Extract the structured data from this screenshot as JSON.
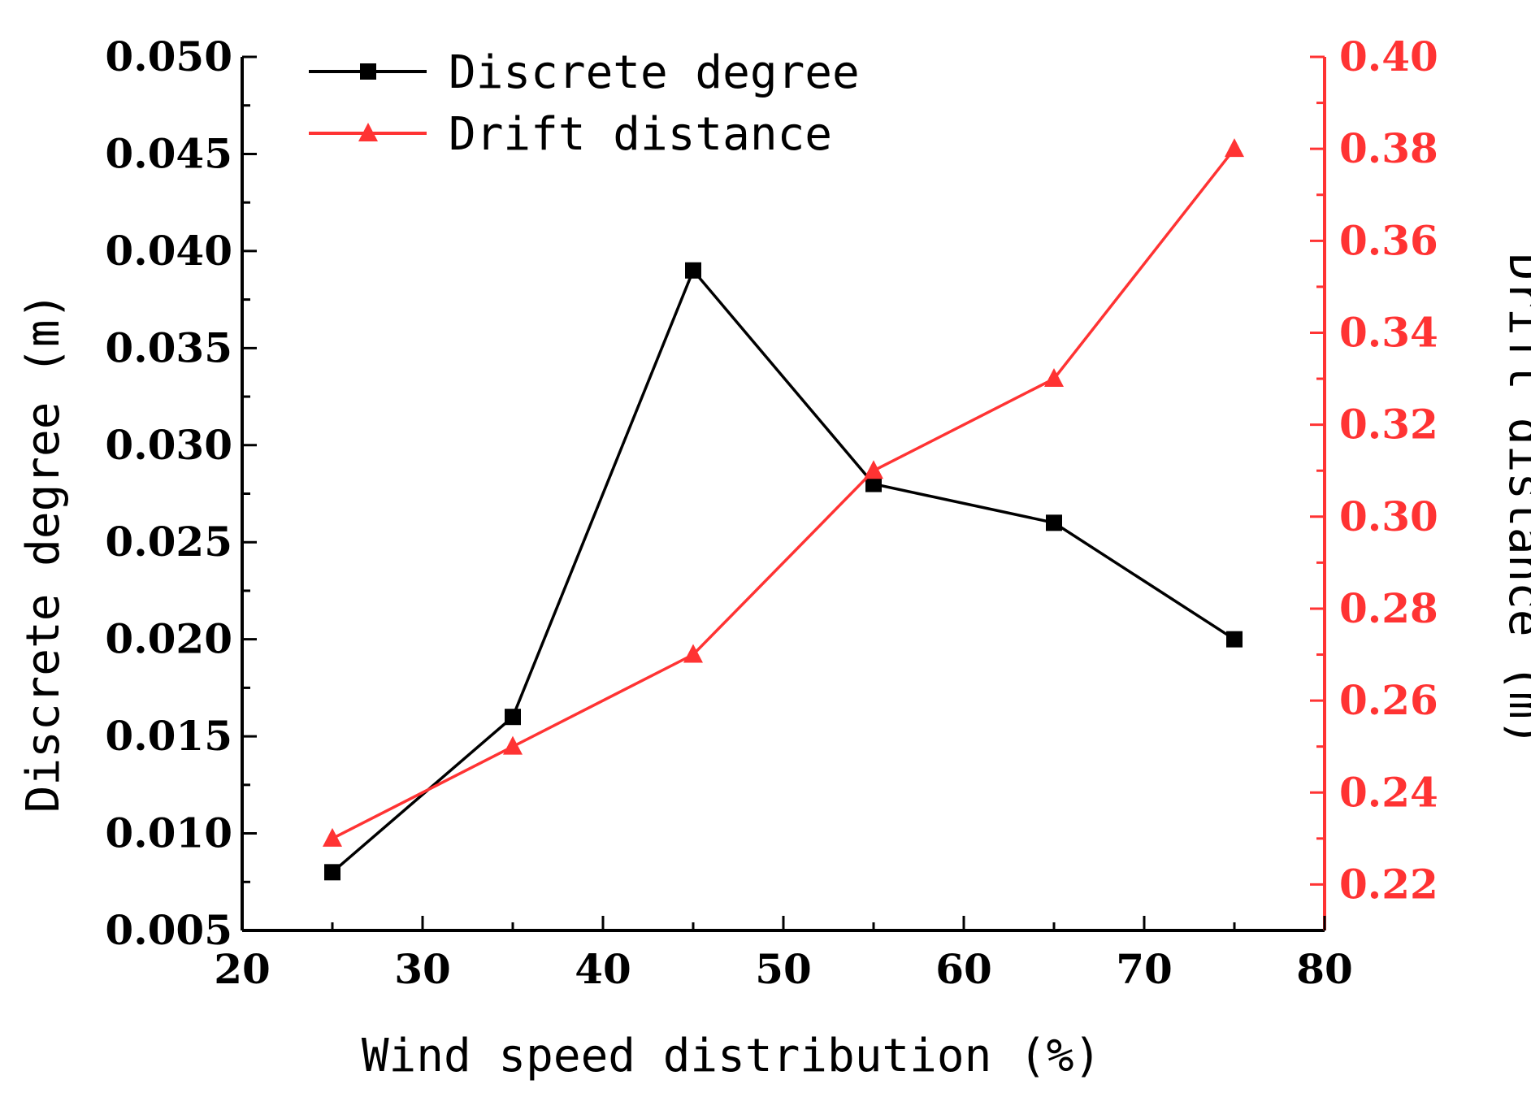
{
  "chart_data": {
    "type": "line",
    "xlabel": "Wind speed distribution (%)",
    "ylabel_left": "Discrete degree (m)",
    "ylabel_right": "Drift distance (m)",
    "xlim": [
      20,
      80
    ],
    "ylim_left": [
      0.005,
      0.05
    ],
    "ylim_right": [
      0.21,
      0.4
    ],
    "x_ticks": [
      20,
      30,
      40,
      50,
      60,
      70,
      80
    ],
    "x_tick_labels": [
      "20",
      "30",
      "40",
      "50",
      "60",
      "70",
      "80"
    ],
    "y_left_ticks": [
      0.005,
      0.01,
      0.015,
      0.02,
      0.025,
      0.03,
      0.035,
      0.04,
      0.045,
      0.05
    ],
    "y_left_tick_labels": [
      "0.005",
      "0.010",
      "0.015",
      "0.020",
      "0.025",
      "0.030",
      "0.035",
      "0.040",
      "0.045",
      "0.050"
    ],
    "y_right_ticks": [
      0.22,
      0.24,
      0.26,
      0.28,
      0.3,
      0.32,
      0.34,
      0.36,
      0.38,
      0.4
    ],
    "y_right_tick_labels": [
      "0.22",
      "0.24",
      "0.26",
      "0.28",
      "0.30",
      "0.32",
      "0.34",
      "0.36",
      "0.38",
      "0.40"
    ],
    "legend_position": "top-left",
    "grid": false,
    "x": [
      25,
      35,
      45,
      55,
      65,
      75
    ],
    "series": [
      {
        "name": "Discrete degree",
        "axis": "left",
        "marker": "square",
        "color": "#000000",
        "values": [
          0.008,
          0.016,
          0.039,
          0.028,
          0.026,
          0.02
        ]
      },
      {
        "name": "Drift distance",
        "axis": "right",
        "marker": "triangle",
        "color": "#ff3333",
        "values": [
          0.23,
          0.25,
          0.27,
          0.31,
          0.33,
          0.38
        ]
      }
    ]
  }
}
